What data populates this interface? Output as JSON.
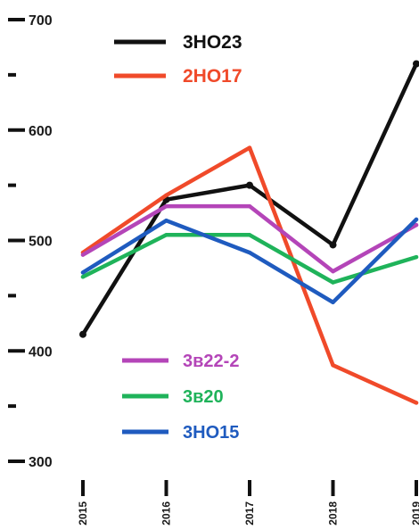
{
  "chart_data": {
    "type": "line",
    "title": "",
    "xlabel": "",
    "ylabel": "",
    "x": [
      "2015",
      "2016",
      "2017",
      "2018",
      "2019"
    ],
    "ylim": [
      300,
      700
    ],
    "yticks_major": [
      300,
      400,
      500,
      600,
      700
    ],
    "yticks_minor": [
      350,
      450,
      550,
      650
    ],
    "grid": false,
    "series": [
      {
        "name": "3НО23",
        "color": "#111111",
        "values": [
          415,
          537,
          550,
          496,
          660
        ]
      },
      {
        "name": "2НО17",
        "color": "#f04a2a",
        "values": [
          489,
          541,
          584,
          387,
          353
        ]
      },
      {
        "name": "3в22-2",
        "color": "#b445b8",
        "values": [
          487,
          531,
          531,
          472,
          514
        ]
      },
      {
        "name": "3в20",
        "color": "#1fb35a",
        "values": [
          467,
          505,
          505,
          462,
          485
        ]
      },
      {
        "name": "3НО15",
        "color": "#1f5bbf",
        "values": [
          471,
          518,
          489,
          444,
          519
        ]
      }
    ],
    "legend": [
      {
        "group": "top-left",
        "items": [
          0,
          1
        ]
      },
      {
        "group": "bottom-left",
        "items": [
          2,
          3,
          4
        ]
      }
    ]
  }
}
